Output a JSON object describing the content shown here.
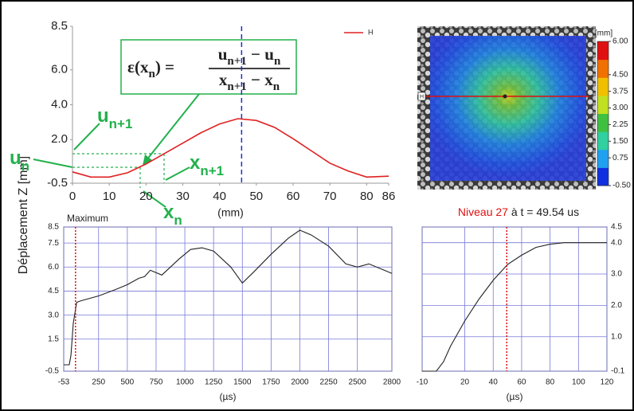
{
  "chart_data": [
    {
      "type": "line",
      "ylabel": "Déplacement Z [mm]",
      "xlabel": "(mm)",
      "xlim": [
        0,
        86
      ],
      "xticks": [
        0,
        10,
        20,
        30,
        40,
        50,
        60,
        70,
        80,
        86
      ],
      "ylim": [
        -0.5,
        8.5
      ],
      "yticks": [
        -0.5,
        {
          "value": 2,
          "label": "2.0"
        },
        {
          "value": 4,
          "label": "4.0"
        },
        {
          "value": 6,
          "label": "6.0"
        },
        8.5
      ],
      "grid": false,
      "legend": "upper right",
      "x": [
        0,
        5,
        10,
        15,
        20,
        25,
        30,
        35,
        40,
        45,
        50,
        55,
        60,
        65,
        70,
        75,
        80,
        86
      ],
      "series": [
        {
          "name": "H",
          "color": "#e02020",
          "values": [
            0.15,
            -0.15,
            -0.15,
            0.1,
            0.6,
            1.2,
            1.8,
            2.4,
            2.9,
            3.2,
            3.1,
            2.7,
            2.05,
            1.35,
            0.65,
            0.2,
            -0.15,
            -0.1
          ]
        }
      ],
      "marker_x": 46,
      "marker_color": "#2030d0",
      "annotation_color": "#22b14c",
      "formula": {
        "lhs": [
          {
            "t": "ε(x",
            "sub": "n"
          },
          {
            "t": ") ="
          }
        ],
        "numerator": [
          {
            "t": "u",
            "sub": "n+1"
          },
          {
            "t": " − u",
            "sub": "n"
          }
        ],
        "denominator": [
          {
            "t": "x",
            "sub": "n+1"
          },
          {
            "t": " − x",
            "sub": "n"
          }
        ]
      },
      "annotations": [
        {
          "t": "u",
          "sub": "n+1"
        },
        {
          "t": "u",
          "sub": "n"
        },
        {
          "t": "x",
          "sub": "n+1"
        },
        {
          "t": "x",
          "sub": "n"
        }
      ]
    },
    {
      "type": "heatmap",
      "line_label": "H",
      "level_label": "Niveau 27",
      "time_label": "à t = 49.54 us",
      "colorbar": {
        "label": "[mm]",
        "lim": [
          -0.5,
          6
        ],
        "colors": [
          "#1030e0",
          "#20a0f0",
          "#30d0a0",
          "#40c040",
          "#c0e020",
          "#f0c000",
          "#f07000",
          "#e01010"
        ],
        "ticks": [
          {
            "value": 6,
            "label": "6.00"
          },
          {
            "value": 4.5,
            "label": "4.50"
          },
          {
            "value": 3.75,
            "label": "3.75"
          },
          {
            "value": 3,
            "label": "3.00"
          },
          {
            "value": 2.25,
            "label": "2.25"
          },
          {
            "value": 1.5,
            "label": "1.50"
          },
          {
            "value": 0.75,
            "label": "0.75"
          },
          {
            "value": -0.5,
            "label": "-0.50"
          }
        ]
      }
    },
    {
      "type": "line",
      "title": "Maximum",
      "xlabel": "(µs)",
      "xlim": [
        -53,
        2800
      ],
      "xticks": [
        -53,
        250,
        500,
        750,
        1000,
        1250,
        1500,
        1750,
        2000,
        2250,
        2500,
        2800
      ],
      "ylim": [
        -0.5,
        8.5
      ],
      "yticks": [
        -0.5,
        1.5,
        {
          "value": 3,
          "label": "3.0"
        },
        4.5,
        {
          "value": 6,
          "label": "6.0"
        },
        7.5,
        8.5
      ],
      "grid": true,
      "x": [
        -53,
        -5,
        10,
        30,
        60,
        100,
        250,
        400,
        500,
        600,
        650,
        700,
        800,
        950,
        1050,
        1150,
        1250,
        1400,
        1500,
        1600,
        1750,
        1900,
        2000,
        2100,
        2250,
        2400,
        2500,
        2600,
        2700,
        2800
      ],
      "series": [
        {
          "color": "#222222",
          "values": [
            -0.1,
            -0.1,
            0.5,
            2.5,
            3.8,
            3.9,
            4.2,
            4.6,
            4.9,
            5.3,
            5.4,
            5.8,
            5.5,
            6.5,
            7.1,
            7.2,
            7.0,
            6.0,
            5.0,
            5.7,
            6.8,
            7.8,
            8.3,
            8.0,
            7.3,
            6.2,
            6.0,
            6.2,
            5.9,
            5.6
          ]
        }
      ],
      "marker_x": 49.54,
      "marker_color": "#e01010"
    },
    {
      "type": "line",
      "xlabel": "(µs)",
      "xlim": [
        -10,
        120
      ],
      "xticks": [
        -10,
        20,
        40,
        60,
        80,
        100,
        120
      ],
      "ylim": [
        -0.1,
        4.5
      ],
      "yticks": [
        -0.1,
        {
          "value": 1,
          "label": "1.0"
        },
        {
          "value": 2,
          "label": "2.0"
        },
        {
          "value": 3,
          "label": "3.0"
        },
        {
          "value": 4,
          "label": "4.0"
        },
        4.5
      ],
      "grid": true,
      "x": [
        -10,
        0,
        5,
        10,
        20,
        30,
        40,
        50,
        60,
        70,
        80,
        90,
        100,
        110,
        120
      ],
      "series": [
        {
          "color": "#222222",
          "values": [
            -0.1,
            -0.1,
            0.2,
            0.7,
            1.5,
            2.2,
            2.8,
            3.3,
            3.6,
            3.85,
            3.95,
            4.0,
            4.0,
            4.0,
            4.0
          ]
        }
      ],
      "marker_x": 49.54,
      "marker_color": "#e01010"
    }
  ]
}
